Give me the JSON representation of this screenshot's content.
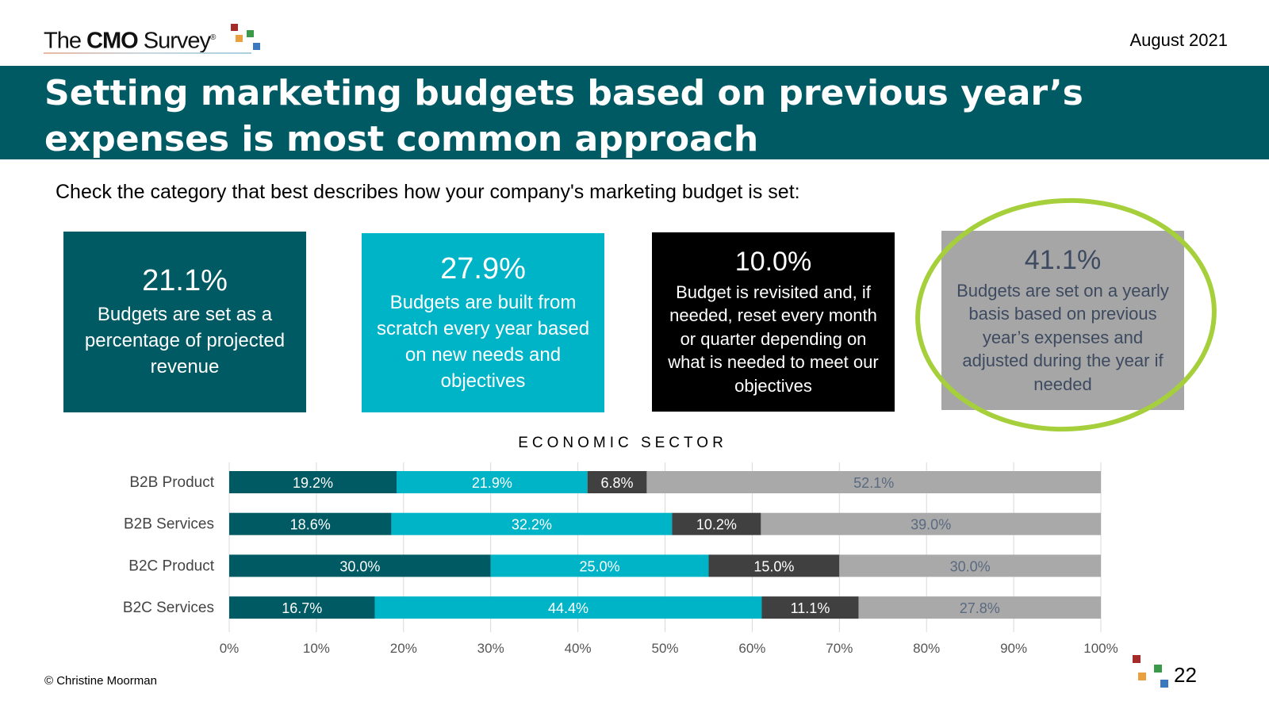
{
  "header": {
    "logo_text": "The CMO Survey",
    "logo_prefix": "The ",
    "logo_bold": "CMO",
    "logo_suffix": " Survey",
    "logo_reg": "®",
    "date": "August 2021"
  },
  "title": "Setting marketing budgets based on previous year’s expenses is most common approach",
  "question": "Check the category that best describes how your company's marketing budget is set:",
  "boxes": [
    {
      "pct": "21.1%",
      "desc": "Budgets are set as a percentage of projected revenue",
      "color": "#005a64"
    },
    {
      "pct": "27.9%",
      "desc": "Budgets are built from scratch every year based on new needs and objectives",
      "color": "#00b4c8"
    },
    {
      "pct": "10.0%",
      "desc": "Budget is revisited and, if needed, reset every month or quarter depending on what is needed to meet our objectives",
      "color": "#000000"
    },
    {
      "pct": "41.1%",
      "desc": "Budgets are set on a yearly basis based on previous year’s expenses and adjusted during the year if needed",
      "color": "#a6a6a6",
      "highlighted": true
    }
  ],
  "chart_data": {
    "type": "bar",
    "orientation": "horizontal",
    "stacked": true,
    "title": "ECONOMIC SECTOR",
    "categories": [
      "B2B Product",
      "B2B Services",
      "B2C Product",
      "B2C Services"
    ],
    "series": [
      {
        "values": [
          19.2,
          18.6,
          30.0,
          16.7
        ],
        "color": "#005a64",
        "label_color": "#ffffff"
      },
      {
        "values": [
          21.9,
          32.2,
          25.0,
          44.4
        ],
        "color": "#00b4c8",
        "label_color": "#ffffff"
      },
      {
        "values": [
          6.8,
          10.2,
          15.0,
          11.1
        ],
        "color": "#404040",
        "label_color": "#ffffff"
      },
      {
        "values": [
          52.1,
          39.0,
          30.0,
          27.8
        ],
        "color": "#a9a9a9",
        "label_color": "#5a6a80"
      }
    ],
    "xlim": [
      0,
      100
    ],
    "xticks": [
      "0%",
      "10%",
      "20%",
      "30%",
      "40%",
      "50%",
      "60%",
      "70%",
      "80%",
      "90%",
      "100%"
    ],
    "grid": true
  },
  "footer": {
    "copyright": "© Christine Moorman",
    "page": "22"
  }
}
